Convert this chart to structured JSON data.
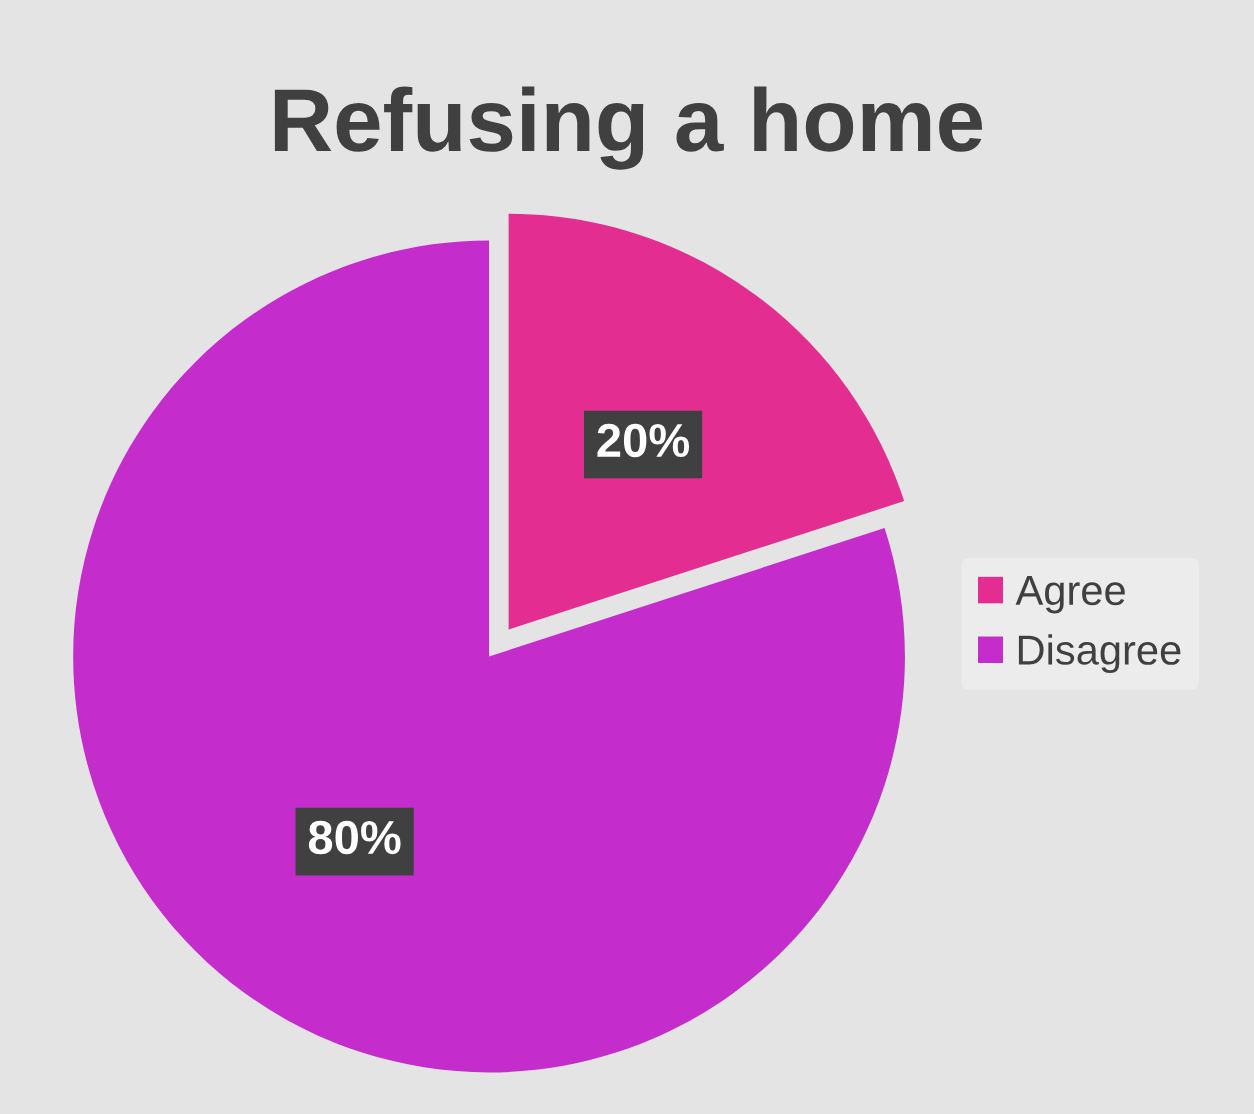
{
  "chart_data": {
    "type": "pie",
    "title": "Refusing a home",
    "categories": [
      "Agree",
      "Disagree"
    ],
    "values": [
      20,
      80
    ],
    "colors": [
      "#e32d91",
      "#c42ccc"
    ],
    "value_labels": [
      "20%",
      "80%"
    ],
    "legend": "right"
  }
}
